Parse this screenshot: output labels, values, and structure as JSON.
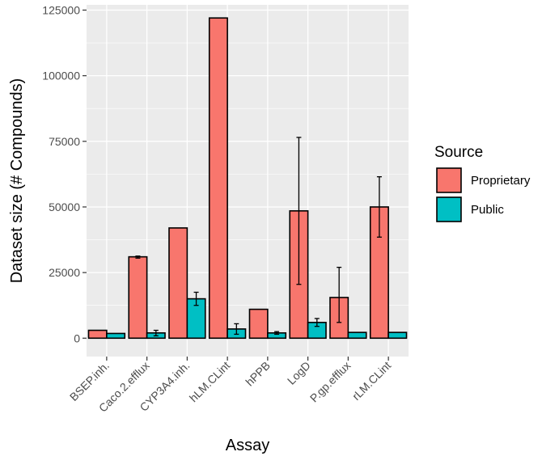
{
  "chart_data": {
    "type": "bar",
    "xlabel": "Assay",
    "ylabel": "Dataset size (# Compounds)",
    "ylim": [
      -7000,
      127000
    ],
    "yticks": [
      0,
      25000,
      50000,
      75000,
      100000,
      125000
    ],
    "ytick_labels": [
      "0",
      "25000",
      "50000",
      "75000",
      "100000",
      "125000"
    ],
    "categories": [
      "BSEP.inh.",
      "Caco.2.efflux",
      "CYP3A4.inh.",
      "hLM.CLint",
      "hPPB",
      "LogD",
      "P.gp.efflux",
      "rLM.CLint"
    ],
    "grid": true,
    "legend": {
      "title": "Source",
      "position": "right"
    },
    "series": [
      {
        "name": "Proprietary",
        "color": "#F8766D",
        "values": [
          3000,
          31000,
          42000,
          122000,
          11000,
          48500,
          15500,
          50000
        ],
        "error_low": [
          null,
          30500,
          null,
          null,
          null,
          20500,
          6000,
          38500
        ],
        "error_high": [
          null,
          31300,
          null,
          null,
          null,
          76500,
          27000,
          61500
        ]
      },
      {
        "name": "Public",
        "color": "#00BFC4",
        "values": [
          1800,
          2000,
          15000,
          3500,
          2000,
          6000,
          2200,
          2200
        ],
        "error_low": [
          null,
          900,
          12500,
          1500,
          1500,
          4500,
          null,
          null
        ],
        "error_high": [
          null,
          3000,
          17500,
          5500,
          2500,
          7500,
          null,
          null
        ]
      }
    ]
  }
}
